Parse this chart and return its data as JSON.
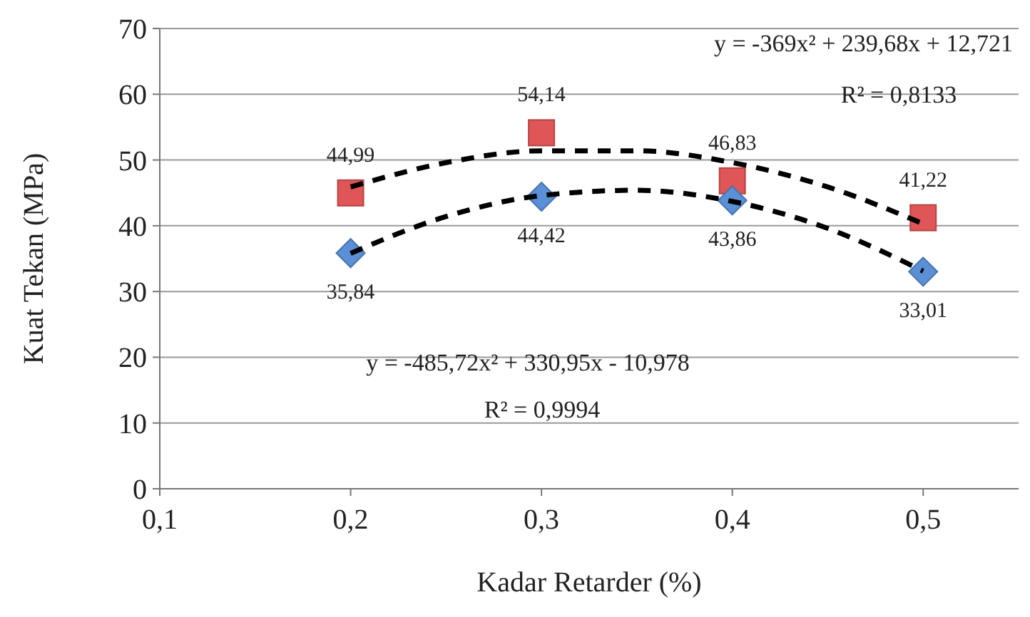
{
  "chart_data": {
    "type": "scatter",
    "xlabel": "Kadar Retarder (%)",
    "ylabel": "Kuat Tekan (MPa)",
    "xlim": [
      0.1,
      0.55
    ],
    "xticks": [
      {
        "value": 0.1,
        "label": "0,1"
      },
      {
        "value": 0.2,
        "label": "0,2"
      },
      {
        "value": 0.3,
        "label": "0,3"
      },
      {
        "value": 0.4,
        "label": "0,4"
      },
      {
        "value": 0.5,
        "label": "0,5"
      }
    ],
    "ylim": [
      0,
      70
    ],
    "yticks": [
      0,
      10,
      20,
      30,
      40,
      50,
      60,
      70
    ],
    "grid": "y",
    "x": [
      0.2,
      0.3,
      0.4,
      0.5
    ],
    "series": [
      {
        "marker": "square",
        "color": "#e05555",
        "values": [
          44.99,
          54.14,
          46.83,
          41.22
        ],
        "value_labels": [
          "44,99",
          "54,14",
          "46,83",
          "41,22"
        ]
      },
      {
        "marker": "diamond",
        "color": "#5b8fd6",
        "values": [
          35.84,
          44.42,
          43.86,
          33.01
        ],
        "value_labels": [
          "35,84",
          "44,42",
          "43,86",
          "33,01"
        ]
      },
      {
        "type": "line",
        "marker": "none",
        "line_style": "dashed",
        "color": "#000000",
        "x": [
          0.2,
          0.25,
          0.3,
          0.35,
          0.4,
          0.45,
          0.5
        ],
        "values": [
          45.9,
          49.6,
          51.4,
          51.4,
          49.6,
          45.9,
          40.3
        ]
      },
      {
        "type": "line",
        "marker": "none",
        "line_style": "dashed",
        "color": "#000000",
        "x": [
          0.2,
          0.25,
          0.3,
          0.35,
          0.4,
          0.45,
          0.5
        ],
        "values": [
          35.8,
          41.4,
          44.6,
          45.4,
          43.7,
          39.6,
          33.1
        ]
      }
    ],
    "annotations": [
      "y = -369x² + 239,68x + 12,721",
      "R² = 0,8133",
      "y = -485,72x² + 330,95x - 10,978",
      "R² = 0,9994"
    ]
  }
}
